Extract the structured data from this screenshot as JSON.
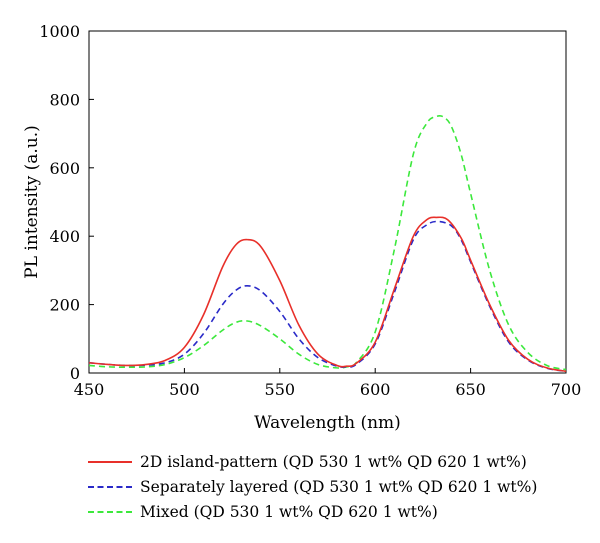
{
  "chart_data": {
    "type": "line",
    "xlabel": "Wavelength (nm)",
    "ylabel": "PL intensity (a.u.)",
    "xlim": [
      450,
      700
    ],
    "ylim": [
      0,
      1000
    ],
    "xticks": [
      "450",
      "500",
      "550",
      "600",
      "650",
      "700"
    ],
    "yticks": [
      "0",
      "200",
      "400",
      "600",
      "800",
      "1000"
    ],
    "grid": false,
    "legend_position": "bottom",
    "series": [
      {
        "name": "2D island-pattern (QD 530 1 wt% QD 620 1 wt%)",
        "color": "#e8302a",
        "dash": "solid",
        "x": [
          450,
          460,
          470,
          480,
          490,
          500,
          510,
          520,
          527,
          533,
          540,
          550,
          560,
          570,
          580,
          585,
          590,
          600,
          610,
          620,
          627,
          632,
          638,
          645,
          650,
          660,
          670,
          680,
          690,
          700
        ],
        "y": [
          30,
          25,
          22,
          25,
          37,
          75,
          170,
          310,
          375,
          390,
          370,
          270,
          140,
          55,
          22,
          20,
          28,
          90,
          245,
          400,
          448,
          455,
          448,
          395,
          330,
          200,
          95,
          40,
          15,
          5
        ]
      },
      {
        "name": "Separately layered (QD 530 1 wt% QD 620 1 wt%)",
        "color": "#2a2ac8",
        "dash": "dashed",
        "x": [
          450,
          460,
          470,
          480,
          490,
          500,
          510,
          520,
          527,
          533,
          540,
          550,
          560,
          570,
          580,
          585,
          590,
          600,
          610,
          620,
          627,
          633,
          640,
          645,
          650,
          660,
          670,
          680,
          690,
          700
        ],
        "y": [
          30,
          25,
          22,
          23,
          30,
          55,
          115,
          200,
          242,
          255,
          240,
          180,
          100,
          45,
          20,
          18,
          25,
          85,
          235,
          390,
          433,
          443,
          430,
          390,
          325,
          195,
          90,
          38,
          14,
          5
        ]
      },
      {
        "name": "Mixed (QD 530 1 wt% QD 620 1 wt%)",
        "color": "#3ce83c",
        "dash": "dashed",
        "x": [
          450,
          460,
          470,
          480,
          490,
          500,
          510,
          520,
          527,
          533,
          540,
          550,
          560,
          570,
          580,
          585,
          590,
          600,
          610,
          620,
          627,
          632,
          636,
          640,
          645,
          650,
          660,
          670,
          680,
          690,
          700
        ],
        "y": [
          22,
          18,
          17,
          18,
          25,
          45,
          80,
          125,
          148,
          152,
          138,
          100,
          55,
          25,
          15,
          18,
          30,
          120,
          360,
          640,
          730,
          750,
          748,
          720,
          640,
          525,
          300,
          140,
          60,
          22,
          10
        ]
      }
    ]
  }
}
